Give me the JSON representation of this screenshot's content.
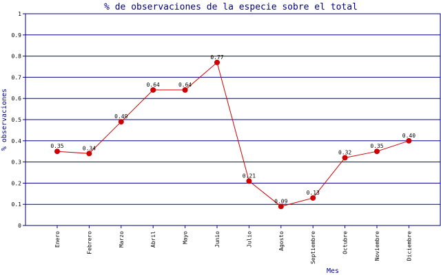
{
  "chart_data": {
    "type": "line",
    "title": "% de observaciones de la especie sobre el total",
    "xlabel": "Mes",
    "ylabel": "% observaciones",
    "ylim": [
      0,
      1
    ],
    "yticks": [
      "0",
      "0.1",
      "0.2",
      "0.3",
      "0.4",
      "0.5",
      "0.6",
      "0.7",
      "0.8",
      "0.9",
      "1"
    ],
    "categories": [
      "Enero",
      "Febrero",
      "Marzo",
      "Abril",
      "Mayo",
      "Junio",
      "Julio",
      "Agosto",
      "Septiembre",
      "Octubre",
      "Noviembre",
      "Diciembre"
    ],
    "values": [
      0.35,
      0.34,
      0.49,
      0.64,
      0.64,
      0.77,
      0.21,
      0.09,
      0.13,
      0.32,
      0.35,
      0.4
    ],
    "value_labels": [
      "0.35",
      "0.34",
      "0.49",
      "0.64",
      "0.64",
      "0.77",
      "0.21",
      "0.09",
      "0.13",
      "0.32",
      "0.35",
      "0.40"
    ],
    "grid": true,
    "colors": {
      "line": "#cc0000",
      "marker": "#cc0000",
      "grid": "#000080",
      "axis": "#000080",
      "text": "#000080"
    }
  }
}
